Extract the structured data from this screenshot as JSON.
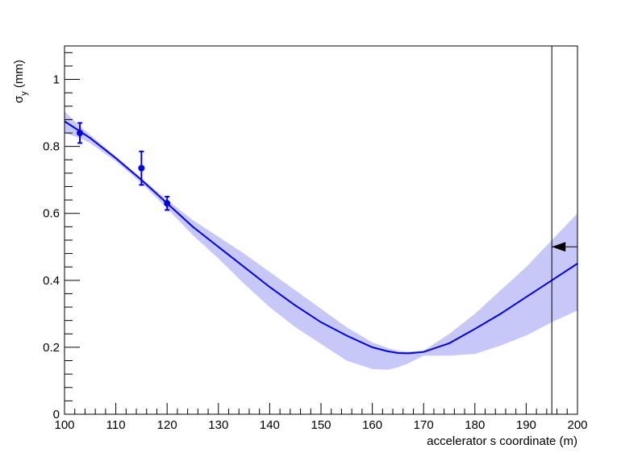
{
  "chart_data": {
    "type": "line",
    "xlabel": "accelerator s coordinate (m)",
    "ylabel_main": "σ",
    "ylabel_sub": "y",
    "ylabel_unit": " (mm)",
    "xlim": [
      100,
      200
    ],
    "ylim": [
      0,
      1.1
    ],
    "x_major_ticks": [
      100,
      110,
      120,
      130,
      140,
      150,
      160,
      170,
      180,
      190,
      200
    ],
    "x_tick_labels": [
      "100",
      "110",
      "120",
      "130",
      "140",
      "150",
      "160",
      "170",
      "180",
      "190",
      "200"
    ],
    "y_major_ticks": [
      0,
      0.2,
      0.4,
      0.6,
      0.8,
      1
    ],
    "y_tick_labels": [
      "0",
      "0.2",
      "0.4",
      "0.6",
      "0.8",
      "1"
    ],
    "grid": false,
    "colors": {
      "line": "#0000e0",
      "band": "#c8c8f8",
      "points": "#0000e0",
      "frame": "#000000",
      "marker": "#000000"
    },
    "fit_curve": {
      "x": [
        100,
        103,
        105,
        110,
        115,
        120,
        125,
        130,
        135,
        140,
        145,
        150,
        155,
        160,
        163,
        165,
        167,
        170,
        175,
        180,
        185,
        190,
        195,
        200
      ],
      "y": [
        0.875,
        0.845,
        0.825,
        0.765,
        0.7,
        0.63,
        0.56,
        0.5,
        0.44,
        0.38,
        0.325,
        0.275,
        0.235,
        0.2,
        0.188,
        0.183,
        0.182,
        0.186,
        0.212,
        0.255,
        0.3,
        0.35,
        0.4,
        0.45
      ]
    },
    "error_band": {
      "x": [
        100,
        103,
        105,
        110,
        115,
        120,
        125,
        130,
        135,
        140,
        145,
        150,
        155,
        160,
        163,
        165,
        167,
        170,
        175,
        180,
        185,
        190,
        195,
        200
      ],
      "upper": [
        0.905,
        0.86,
        0.835,
        0.77,
        0.705,
        0.64,
        0.58,
        0.53,
        0.48,
        0.425,
        0.37,
        0.315,
        0.26,
        0.215,
        0.198,
        0.19,
        0.187,
        0.19,
        0.24,
        0.3,
        0.37,
        0.44,
        0.52,
        0.6
      ],
      "lower": [
        0.84,
        0.825,
        0.81,
        0.755,
        0.69,
        0.615,
        0.535,
        0.465,
        0.39,
        0.32,
        0.26,
        0.21,
        0.16,
        0.135,
        0.133,
        0.14,
        0.152,
        0.175,
        0.175,
        0.18,
        0.205,
        0.235,
        0.275,
        0.31
      ]
    },
    "points": [
      {
        "x": 103,
        "y": 0.84,
        "err": 0.03
      },
      {
        "x": 115,
        "y": 0.735,
        "err": 0.05
      },
      {
        "x": 120,
        "y": 0.63,
        "err": 0.02
      }
    ],
    "vertical_line_x": 195,
    "arrow_marker": {
      "x": 195,
      "y": 0.5,
      "direction": "left"
    }
  }
}
